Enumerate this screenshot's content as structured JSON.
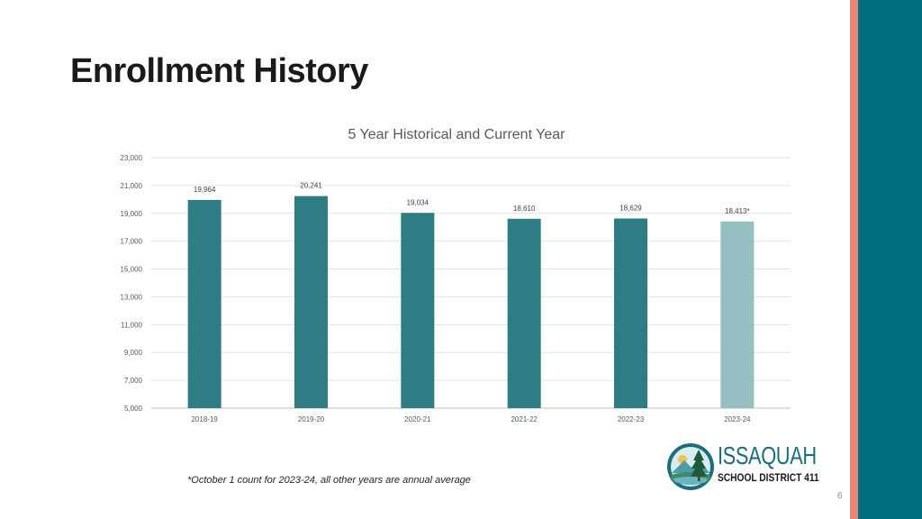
{
  "slide": {
    "title": "Enrollment History",
    "footnote": "*October 1 count for 2023-24, all other years are annual average",
    "page_number": "6"
  },
  "logo": {
    "wordmark": "ISSAQUAH",
    "subtitle": "SCHOOL DISTRICT 411"
  },
  "colors": {
    "bar": "#2e7d85",
    "bar_current": "#96bfc2",
    "accent": "#e8877a",
    "band": "#006e7f"
  },
  "chart_data": {
    "type": "bar",
    "title": "5 Year Historical and Current Year",
    "categories": [
      "2018-19",
      "2019-20",
      "2020-21",
      "2021-22",
      "2022-23",
      "2023-24"
    ],
    "values": [
      19964,
      20241,
      19034,
      18610,
      18629,
      18413
    ],
    "data_labels": [
      "19,964",
      "20,241",
      "19,034",
      "18,610",
      "18,629",
      "18,413*"
    ],
    "highlight": [
      false,
      false,
      false,
      false,
      false,
      true
    ],
    "ylim": [
      5000,
      23000
    ],
    "yticks": [
      5000,
      7000,
      9000,
      11000,
      13000,
      15000,
      17000,
      19000,
      21000,
      23000
    ],
    "ytick_labels": [
      "5,000",
      "7,000",
      "9,000",
      "11,000",
      "13,000",
      "15,000",
      "17,000",
      "19,000",
      "21,000",
      "23,000"
    ],
    "grid": true,
    "legend": false
  }
}
